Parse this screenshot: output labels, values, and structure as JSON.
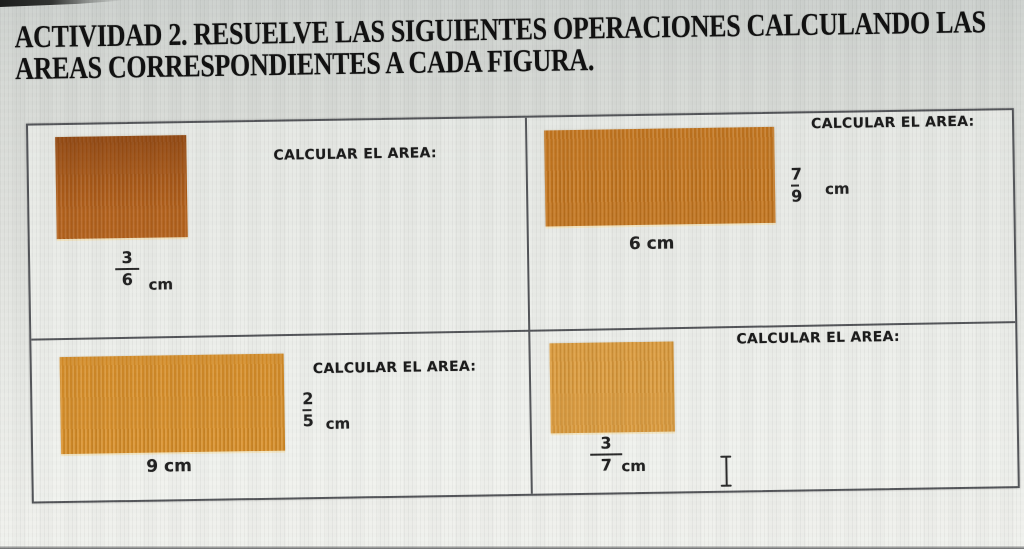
{
  "title": {
    "line1": "ACTIVIDAD 2. RESUELVE LAS SIGUIENTES OPERACIONES CALCULANDO LAS",
    "line2": "AREAS CORRESPONDIENTES A CADA FIGURA."
  },
  "cells": [
    {
      "id": "top-left",
      "prompt": "CALCULAR EL AREA:",
      "shape": "rectangle",
      "shape_color": "#b4611c",
      "side_label": {
        "numerator": "3",
        "denominator": "6",
        "unit": "cm"
      }
    },
    {
      "id": "top-right",
      "prompt": "CALCULAR EL AREA:",
      "shape": "rectangle",
      "shape_color": "#c47620",
      "base_label": "6 cm",
      "height_label": {
        "numerator": "7",
        "denominator": "9",
        "unit": "cm"
      }
    },
    {
      "id": "bottom-left",
      "prompt": "CALCULAR EL AREA:",
      "shape": "rectangle",
      "shape_color": "#d8902b",
      "base_label": "9 cm",
      "height_label": {
        "numerator": "2",
        "denominator": "5",
        "unit": "cm"
      }
    },
    {
      "id": "bottom-right",
      "prompt": "CALCULAR EL AREA:",
      "shape": "rectangle",
      "shape_color": "#dc9c3e",
      "width_label": {
        "numerator": "3",
        "denominator": "7",
        "unit": "cm"
      }
    }
  ],
  "cursor": {
    "type": "text-ibeam"
  },
  "colors": {
    "table_border": "#54565a",
    "background": "#e2e4e0",
    "text": "#1b1b1b"
  }
}
